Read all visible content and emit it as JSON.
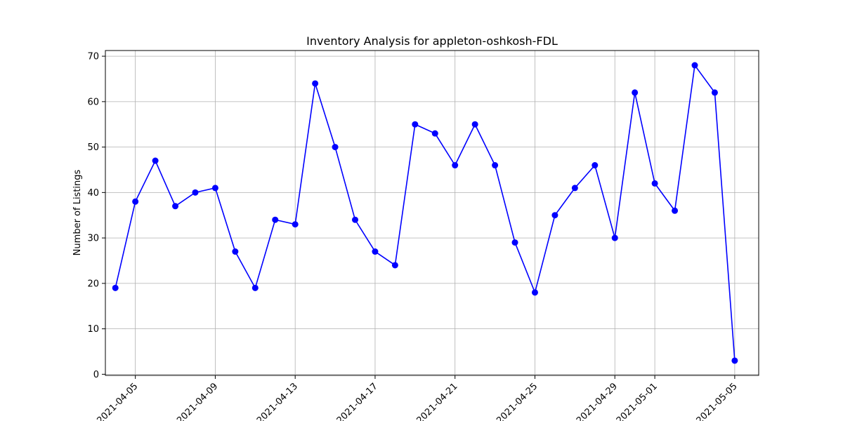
{
  "chart_data": {
    "type": "line",
    "title": "Inventory Analysis for appleton-oshkosh-FDL",
    "xlabel": "",
    "ylabel": "Number of Listings",
    "grid": true,
    "line_color": "#0000ff",
    "marker_color": "#0000ff",
    "x_tick_labels": [
      "2021-04-05",
      "2021-04-09",
      "2021-04-13",
      "2021-04-17",
      "2021-04-21",
      "2021-04-25",
      "2021-04-29",
      "2021-05-01",
      "2021-05-05"
    ],
    "y_ticks": [
      0,
      10,
      20,
      30,
      40,
      50,
      60,
      70
    ],
    "ylim": [
      -0.25,
      71.25
    ],
    "xlim": [
      "2021-04-03",
      "2021-05-06"
    ],
    "series": [
      {
        "x": [
          "2021-04-04",
          "2021-04-05",
          "2021-04-06",
          "2021-04-07",
          "2021-04-08",
          "2021-04-09",
          "2021-04-10",
          "2021-04-11",
          "2021-04-12",
          "2021-04-13",
          "2021-04-14",
          "2021-04-15",
          "2021-04-16",
          "2021-04-17",
          "2021-04-18",
          "2021-04-19",
          "2021-04-20",
          "2021-04-21",
          "2021-04-22",
          "2021-04-23",
          "2021-04-24",
          "2021-04-25",
          "2021-04-26",
          "2021-04-27",
          "2021-04-28",
          "2021-04-29",
          "2021-04-30",
          "2021-05-01",
          "2021-05-02",
          "2021-05-03",
          "2021-05-04",
          "2021-05-05"
        ],
        "values": [
          19,
          38,
          47,
          37,
          40,
          41,
          27,
          19,
          34,
          33,
          64,
          50,
          34,
          27,
          24,
          55,
          53,
          46,
          55,
          46,
          29,
          18,
          35,
          41,
          46,
          30,
          62,
          42,
          36,
          68,
          62,
          3
        ]
      }
    ]
  }
}
